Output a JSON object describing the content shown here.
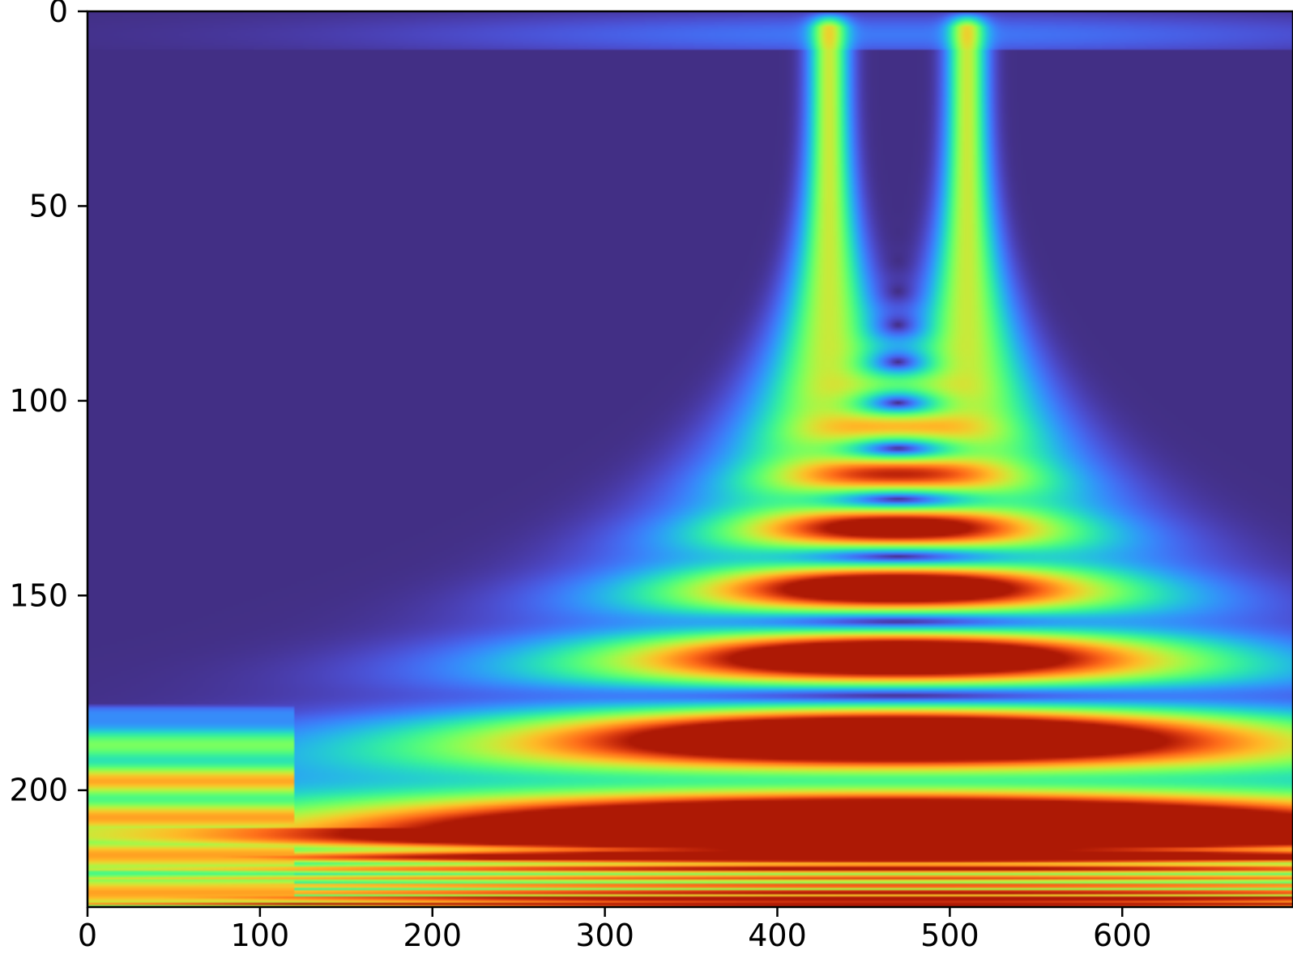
{
  "chart_data": {
    "type": "heatmap",
    "title": "",
    "xlabel": "",
    "ylabel": "",
    "colormap": "turbo",
    "xlim": [
      0,
      699
    ],
    "ylim": [
      230,
      0
    ],
    "x_ticks": [
      0,
      100,
      200,
      300,
      400,
      500,
      600
    ],
    "x_tick_labels": [
      "0",
      "100",
      "200",
      "300",
      "400",
      "500",
      "600"
    ],
    "y_ticks": [
      0,
      50,
      100,
      150,
      200
    ],
    "y_tick_labels": [
      "0",
      "50",
      "100",
      "150",
      "200"
    ],
    "grid": false,
    "features": {
      "beams": [
        {
          "x": 430,
          "y_start": 5
        },
        {
          "x": 510,
          "y_start": 5
        }
      ],
      "interference_center_x": 470,
      "dark_fringe_rows": [
        63,
        68,
        73,
        79,
        86,
        93,
        100,
        110,
        123,
        142,
        175
      ],
      "bright_lobes": [
        {
          "x": 470,
          "y": 133
        },
        {
          "x": 470,
          "y": 157
        },
        {
          "x": 470,
          "y": 205
        }
      ]
    }
  }
}
